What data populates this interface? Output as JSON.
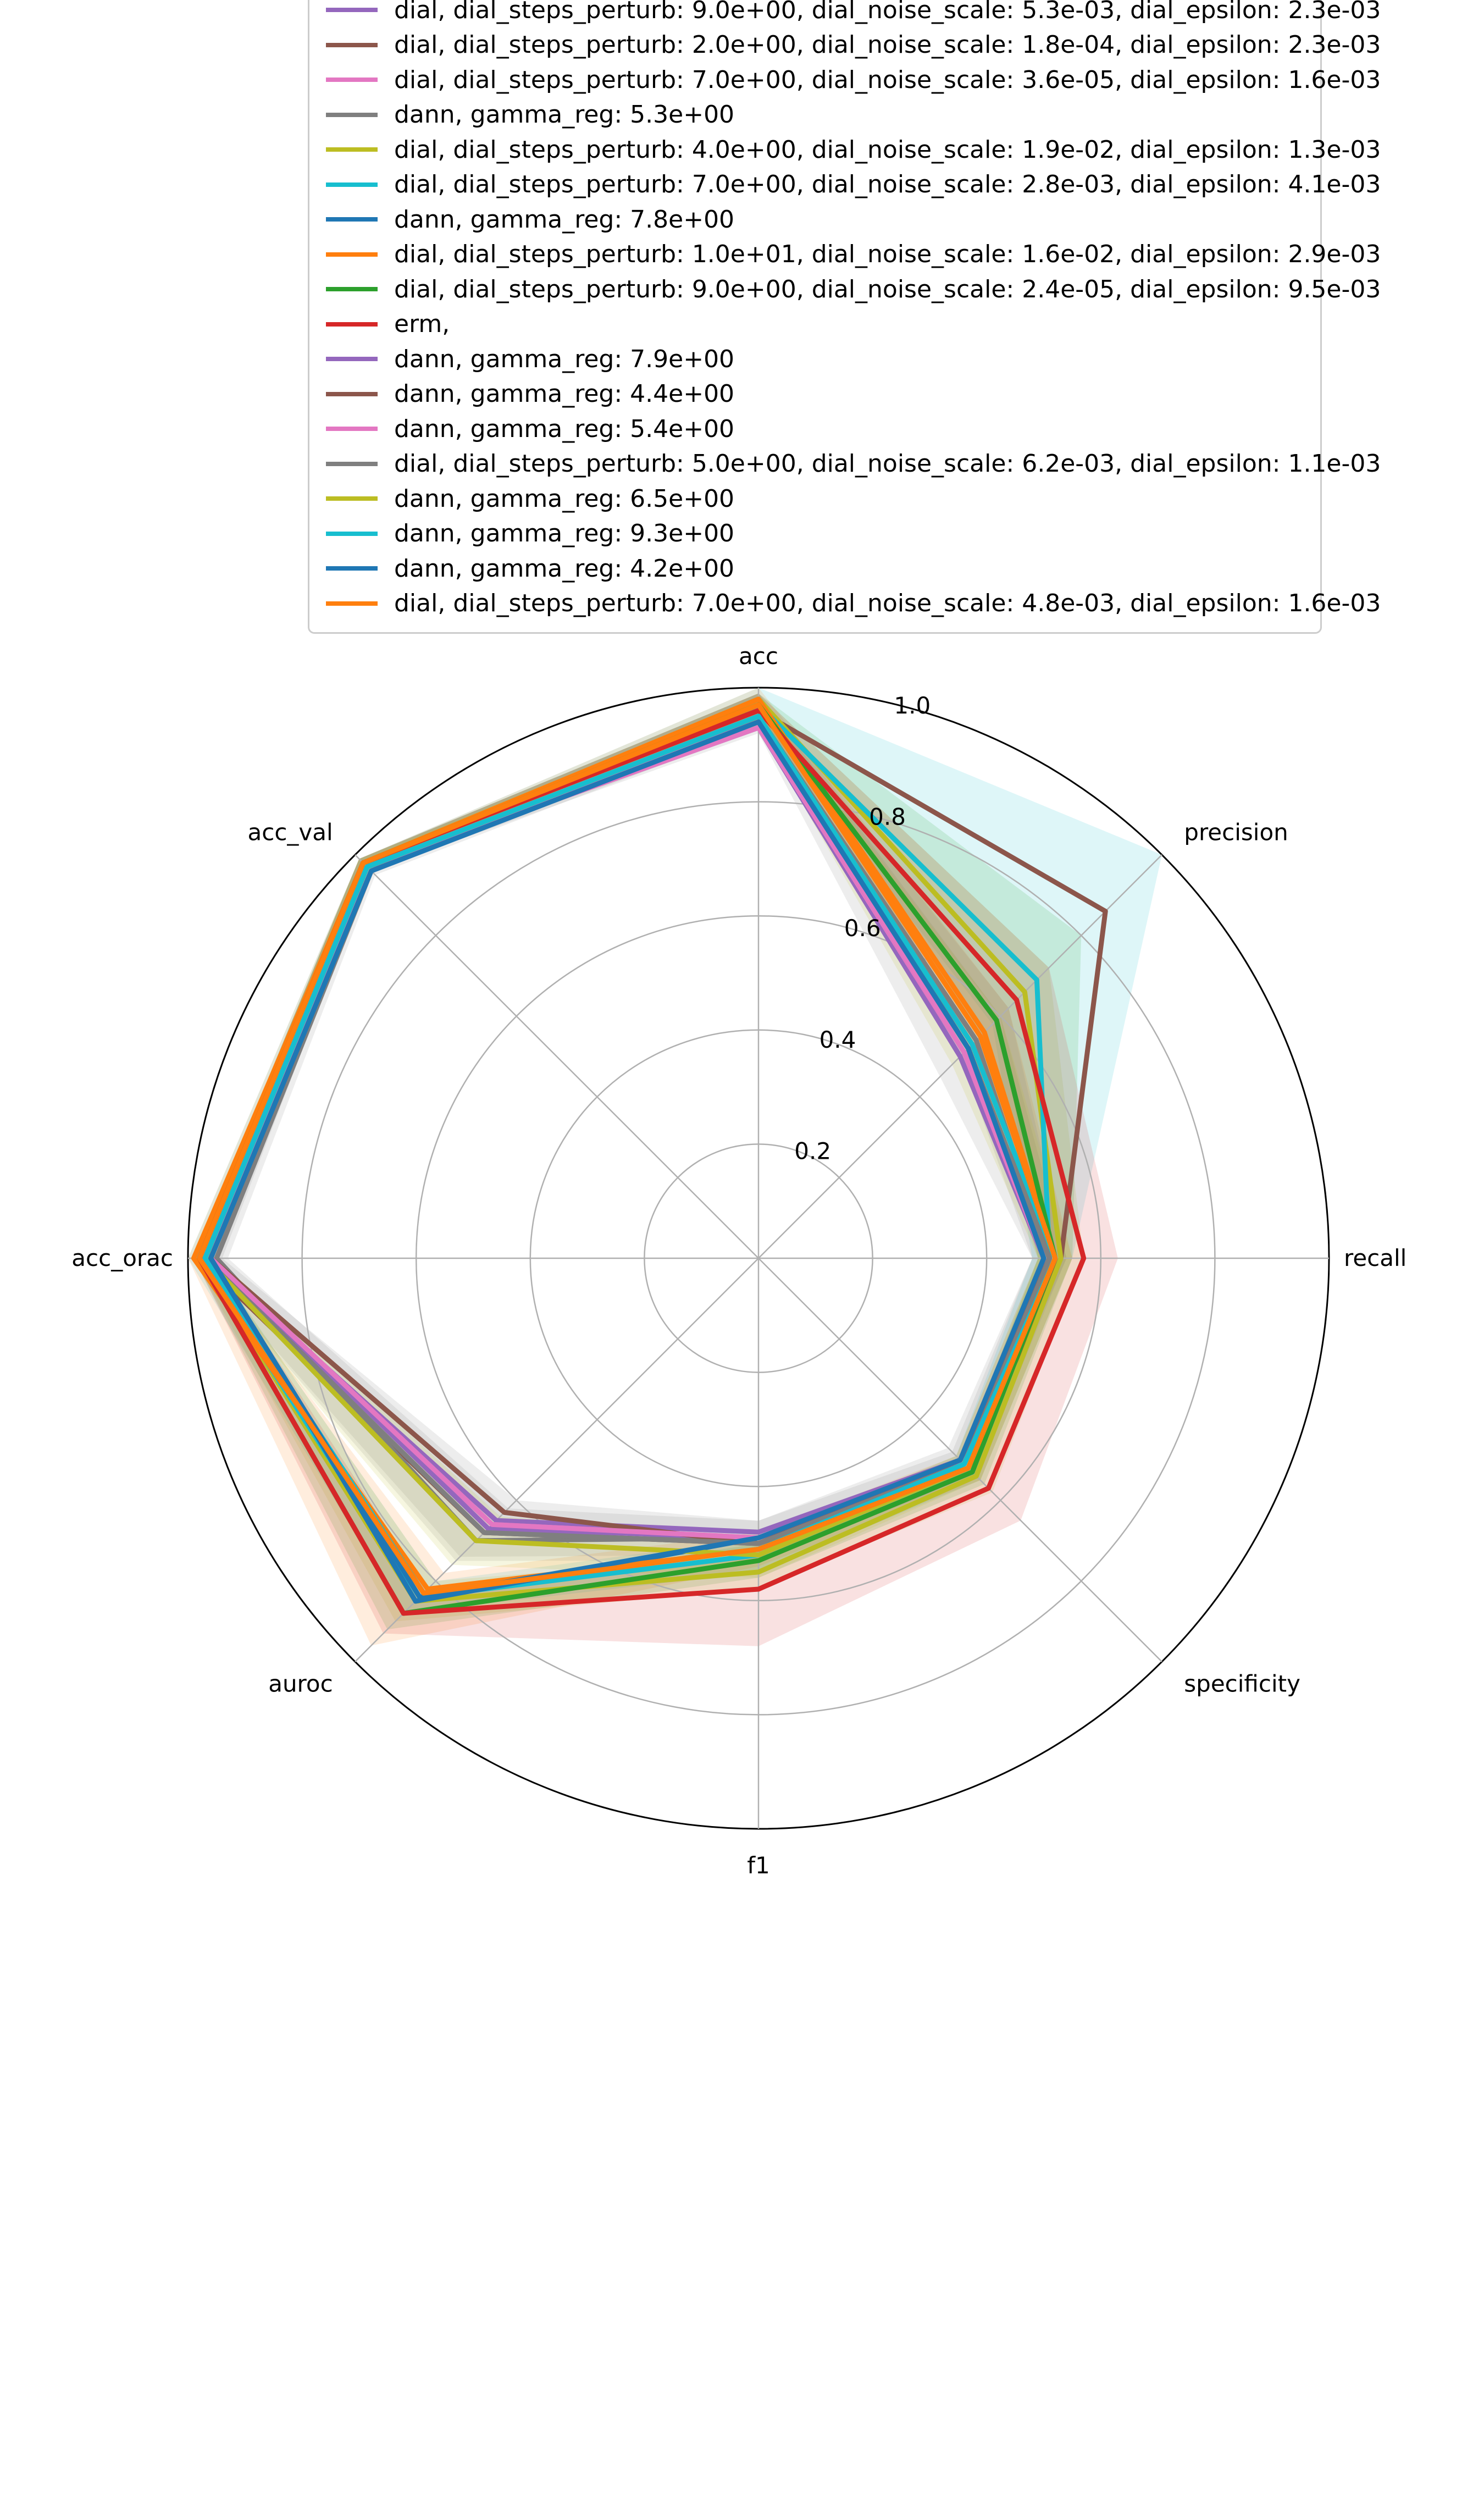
{
  "chart_data": {
    "type": "radar",
    "axes": [
      "acc",
      "precision",
      "recall",
      "specificity",
      "f1",
      "auroc",
      "acc_oracle",
      "acc_val"
    ],
    "axis_label_text": [
      "acc",
      "precision",
      "recall",
      "specificity",
      "f1",
      "auroc",
      "acc_orac",
      "acc_val"
    ],
    "rlim": [
      0,
      1.0
    ],
    "r_ticks": [
      0.2,
      0.4,
      0.6,
      0.8,
      1.0
    ],
    "r_tick_labels": [
      "0.2",
      "0.4",
      "0.6",
      "0.8",
      "1.0"
    ],
    "grid": true,
    "legend_placement": "top",
    "series": [
      {
        "name": "dial, dial_steps_perturb: 9.0e+00, dial_noise_scale: 5.3e-03, dial_epsilon: 2.3e-03",
        "color": "#9467bd",
        "values": [
          0.93,
          0.5,
          0.5,
          0.5,
          0.48,
          0.65,
          0.97,
          0.97
        ],
        "band": null
      },
      {
        "name": "dial, dial_steps_perturb: 2.0e+00, dial_noise_scale: 1.8e-04, dial_epsilon: 2.3e-03",
        "color": "#8c564b",
        "values": [
          0.96,
          0.86,
          0.53,
          0.52,
          0.5,
          0.68,
          0.98,
          0.98
        ],
        "band": null
      },
      {
        "name": "dial, dial_steps_perturb: 7.0e+00, dial_noise_scale: 3.6e-05, dial_epsilon: 1.6e-03",
        "color": "#e377c2",
        "values": [
          0.93,
          0.51,
          0.51,
          0.51,
          0.49,
          0.66,
          0.97,
          0.97
        ],
        "band": null
      },
      {
        "name": "dann, gamma_reg: 5.3e+00",
        "color": "#7f7f7f",
        "values": [
          0.95,
          0.54,
          0.51,
          0.5,
          0.49,
          0.7,
          0.95,
          0.96
        ],
        "band": [
          [
            0.93,
            0.5,
            0.48,
            0.47,
            0.46,
            0.62,
            0.93,
            0.95
          ],
          [
            0.99,
            0.6,
            0.54,
            0.53,
            0.52,
            0.74,
            0.99,
            0.99
          ]
        ]
      },
      {
        "name": "dial, dial_steps_perturb: 4.0e+00, dial_noise_scale: 1.9e-02, dial_epsilon: 1.3e-03",
        "color": "#bcbd22",
        "values": [
          0.98,
          0.66,
          0.53,
          0.54,
          0.55,
          0.85,
          0.98,
          0.98
        ],
        "band": [
          [
            0.95,
            0.6,
            0.49,
            0.5,
            0.52,
            0.8,
            0.96,
            0.97
          ],
          [
            0.99,
            0.72,
            0.57,
            0.58,
            0.58,
            0.9,
            0.99,
            0.99
          ]
        ]
      },
      {
        "name": "dial, dial_steps_perturb: 7.0e+00, dial_noise_scale: 2.8e-03, dial_epsilon: 4.1e-03",
        "color": "#17becf",
        "values": [
          0.97,
          0.69,
          0.51,
          0.52,
          0.52,
          0.84,
          0.98,
          0.98
        ],
        "band": [
          [
            0.94,
            0.58,
            0.48,
            0.49,
            0.49,
            0.8,
            0.96,
            0.97
          ],
          [
            1.0,
            1.0,
            0.55,
            0.55,
            0.55,
            0.88,
            1.0,
            0.99
          ]
        ]
      },
      {
        "name": "dann, gamma_reg: 7.8e+00",
        "color": "#1f77b4",
        "values": [
          0.95,
          0.52,
          0.51,
          0.5,
          0.49,
          0.85,
          0.96,
          0.97
        ],
        "band": null
      },
      {
        "name": "dial, dial_steps_perturb: 1.0e+01, dial_noise_scale: 1.6e-02, dial_epsilon: 2.9e-03",
        "color": "#ff7f0e",
        "values": [
          0.98,
          0.56,
          0.52,
          0.52,
          0.51,
          0.82,
          0.99,
          0.98
        ],
        "band": [
          [
            0.96,
            0.52,
            0.49,
            0.49,
            0.48,
            0.78,
            0.97,
            0.97
          ],
          [
            1.0,
            0.62,
            0.55,
            0.55,
            0.54,
            0.96,
            1.0,
            0.99
          ]
        ]
      },
      {
        "name": "dial, dial_steps_perturb: 9.0e+00, dial_noise_scale: 2.4e-05, dial_epsilon: 9.5e-03",
        "color": "#2ca02c",
        "values": [
          0.97,
          0.59,
          0.52,
          0.53,
          0.53,
          0.88,
          0.98,
          0.98
        ],
        "band": [
          [
            0.94,
            0.55,
            0.49,
            0.5,
            0.5,
            0.84,
            0.96,
            0.97
          ],
          [
            0.99,
            0.8,
            0.55,
            0.56,
            0.56,
            0.92,
            0.99,
            0.99
          ]
        ]
      },
      {
        "name": "erm,",
        "color": "#d62728",
        "values": [
          0.96,
          0.64,
          0.57,
          0.57,
          0.58,
          0.88,
          0.98,
          0.98
        ],
        "band": [
          [
            0.93,
            0.55,
            0.52,
            0.52,
            0.52,
            0.82,
            0.96,
            0.97
          ],
          [
            0.99,
            0.72,
            0.63,
            0.65,
            0.68,
            0.93,
            0.99,
            0.99
          ]
        ]
      },
      {
        "name": "dann, gamma_reg: 7.9e+00",
        "color": "#9467bd",
        "values": [
          0.94,
          0.51,
          0.51,
          0.5,
          0.49,
          0.67,
          0.96,
          0.97
        ],
        "band": null
      },
      {
        "name": "dann, gamma_reg: 4.4e+00",
        "color": "#8c564b",
        "values": [
          0.94,
          0.52,
          0.51,
          0.5,
          0.5,
          0.63,
          0.96,
          0.97
        ],
        "band": null
      },
      {
        "name": "dann, gamma_reg: 5.4e+00",
        "color": "#e377c2",
        "values": [
          0.94,
          0.51,
          0.5,
          0.5,
          0.49,
          0.66,
          0.96,
          0.97
        ],
        "band": null
      },
      {
        "name": "dial, dial_steps_perturb: 5.0e+00, dial_noise_scale: 6.2e-03, dial_epsilon: 1.1e-03",
        "color": "#7f7f7f",
        "values": [
          0.95,
          0.52,
          0.51,
          0.51,
          0.5,
          0.68,
          0.97,
          0.97
        ],
        "band": [
          [
            0.92,
            0.45,
            0.48,
            0.48,
            0.46,
            0.6,
            0.94,
            0.96
          ],
          [
            0.99,
            0.62,
            0.54,
            0.54,
            0.53,
            0.75,
            0.99,
            0.99
          ]
        ]
      },
      {
        "name": "dann, gamma_reg: 6.5e+00",
        "color": "#bcbd22",
        "values": [
          0.95,
          0.53,
          0.52,
          0.52,
          0.52,
          0.7,
          0.97,
          0.97
        ],
        "band": [
          [
            0.93,
            0.48,
            0.49,
            0.49,
            0.49,
            0.64,
            0.95,
            0.96
          ],
          [
            0.98,
            0.6,
            0.55,
            0.55,
            0.56,
            0.76,
            0.99,
            0.99
          ]
        ]
      },
      {
        "name": "dann, gamma_reg: 9.3e+00",
        "color": "#17becf",
        "values": [
          0.95,
          0.53,
          0.52,
          0.51,
          0.51,
          0.83,
          0.97,
          0.97
        ],
        "band": null
      },
      {
        "name": "dann, gamma_reg: 4.2e+00",
        "color": "#1f77b4",
        "values": [
          0.94,
          0.52,
          0.5,
          0.5,
          0.49,
          0.84,
          0.96,
          0.96
        ],
        "band": null
      },
      {
        "name": "dial, dial_steps_perturb: 7.0e+00, dial_noise_scale: 4.8e-03, dial_epsilon: 1.6e-03",
        "color": "#ff7f0e",
        "values": [
          0.97,
          0.55,
          0.52,
          0.52,
          0.51,
          0.83,
          0.98,
          0.98
        ],
        "band": null
      }
    ]
  }
}
